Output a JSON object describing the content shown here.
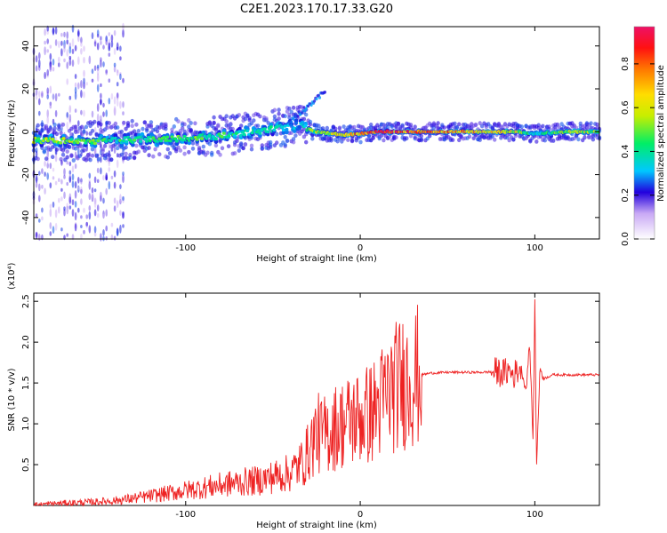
{
  "title": "C2E1.2023.170.17.33.G20",
  "chart_data": [
    {
      "type": "heatmap",
      "xlabel": "Height of straight line (km)",
      "ylabel": "Frequency (Hz)",
      "xlim": [
        -187,
        137
      ],
      "ylim": [
        -50,
        49
      ],
      "xticks": [
        -100,
        0,
        100
      ],
      "yticks": [
        -40,
        -20,
        0,
        20,
        40
      ],
      "colorbar": {
        "label": "Normalized spectral amplitude",
        "range": [
          0,
          0.97
        ],
        "ticks": [
          0.0,
          0.2,
          0.4,
          0.6,
          0.8
        ]
      },
      "ridge": [
        {
          "x": -177,
          "freq": -4.0,
          "amp": 0.55
        },
        {
          "x": -160,
          "freq": -4.5,
          "amp": 0.5
        },
        {
          "x": -140,
          "freq": -4.0,
          "amp": 0.45
        },
        {
          "x": -120,
          "freq": -3.5,
          "amp": 0.45
        },
        {
          "x": -100,
          "freq": -3.0,
          "amp": 0.5
        },
        {
          "x": -80,
          "freq": -2.0,
          "amp": 0.45
        },
        {
          "x": -60,
          "freq": 0.0,
          "amp": 0.4
        },
        {
          "x": -45,
          "freq": 2.0,
          "amp": 0.4
        },
        {
          "x": -35,
          "freq": 3.0,
          "amp": 0.3
        },
        {
          "x": -25,
          "freq": 0.0,
          "amp": 0.6
        },
        {
          "x": -10,
          "freq": -1.5,
          "amp": 0.7
        },
        {
          "x": 0,
          "freq": -1.0,
          "amp": 0.8
        },
        {
          "x": 10,
          "freq": 0.0,
          "amp": 0.9
        },
        {
          "x": 30,
          "freq": 0.0,
          "amp": 0.85
        },
        {
          "x": 60,
          "freq": 0.0,
          "amp": 0.75
        },
        {
          "x": 90,
          "freq": 0.0,
          "amp": 0.6
        },
        {
          "x": 100,
          "freq": -1.0,
          "amp": 0.35
        },
        {
          "x": 120,
          "freq": 0.0,
          "amp": 0.6
        },
        {
          "x": 135,
          "freq": 0.0,
          "amp": 0.55
        }
      ]
    },
    {
      "type": "line",
      "xlabel": "Height of straight line (km)",
      "ylabel": "SNR (10 * v/v)",
      "y_scale_note": "(x10⁴)",
      "xlim": [
        -187,
        137
      ],
      "ylim": [
        0,
        2.6
      ],
      "xticks": [
        -100,
        0,
        100
      ],
      "yticks": [
        0.5,
        1.0,
        1.5,
        2.0,
        2.5
      ],
      "series": [
        {
          "color": "#ee2222",
          "x": [
            -187,
            -170,
            -155,
            -140,
            -125,
            -110,
            -95,
            -80,
            -70,
            -60,
            -50,
            -40,
            -32,
            -28,
            -25,
            -22,
            -18,
            -15,
            -10,
            -5,
            0,
            5,
            10,
            15,
            20,
            25,
            30,
            35,
            40,
            50,
            60,
            70,
            78,
            82,
            85,
            88,
            92,
            95,
            97,
            99,
            100,
            101,
            103,
            105,
            110,
            120,
            130,
            137
          ],
          "y": [
            0.01,
            0.03,
            0.04,
            0.06,
            0.1,
            0.15,
            0.2,
            0.25,
            0.28,
            0.3,
            0.35,
            0.4,
            0.55,
            0.75,
            0.9,
            0.85,
            0.9,
            0.95,
            1.0,
            1.05,
            1.08,
            1.12,
            1.2,
            1.35,
            1.45,
            1.52,
            1.57,
            1.6,
            1.62,
            1.63,
            1.63,
            1.63,
            1.64,
            1.62,
            1.65,
            1.6,
            1.7,
            1.4,
            2.0,
            0.8,
            2.5,
            0.5,
            1.7,
            1.55,
            1.6,
            1.6,
            1.6,
            1.6
          ]
        }
      ]
    }
  ]
}
